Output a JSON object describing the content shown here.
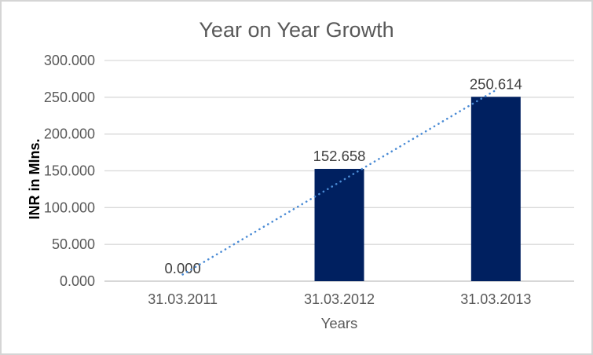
{
  "chart_data": {
    "type": "bar",
    "title": "Year on Year Growth",
    "xlabel": "Years",
    "ylabel": "INR in Mlns.",
    "categories": [
      "31.03.2011",
      "31.03.2012",
      "31.03.2013"
    ],
    "values": [
      0.0,
      152.658,
      250.614
    ],
    "data_labels": [
      "0.000",
      "152.658",
      "250.614"
    ],
    "y_ticks": [
      0,
      50,
      100,
      150,
      200,
      250,
      300
    ],
    "y_tick_labels": [
      "0.000",
      "50.000",
      "100.000",
      "150.000",
      "200.000",
      "250.000",
      "300.000"
    ],
    "ylim": [
      0,
      300
    ],
    "grid": true,
    "legend": false,
    "trendline": {
      "style": "dotted",
      "type": "linear",
      "fit_start_value": 9.117,
      "fit_end_value": 259.731
    },
    "colors": {
      "bar": "#002060",
      "trendline": "#4a8bd5",
      "title": "#595959",
      "tick_label": "#595959",
      "category_label": "#595959",
      "data_label": "#404040",
      "y_axis_title": "#000000",
      "x_axis_title": "#595959",
      "gridline": "#d9d9d9",
      "axis_line": "#bfbfbf",
      "frame_border": "#d5d5d5",
      "background": "#ffffff"
    }
  }
}
